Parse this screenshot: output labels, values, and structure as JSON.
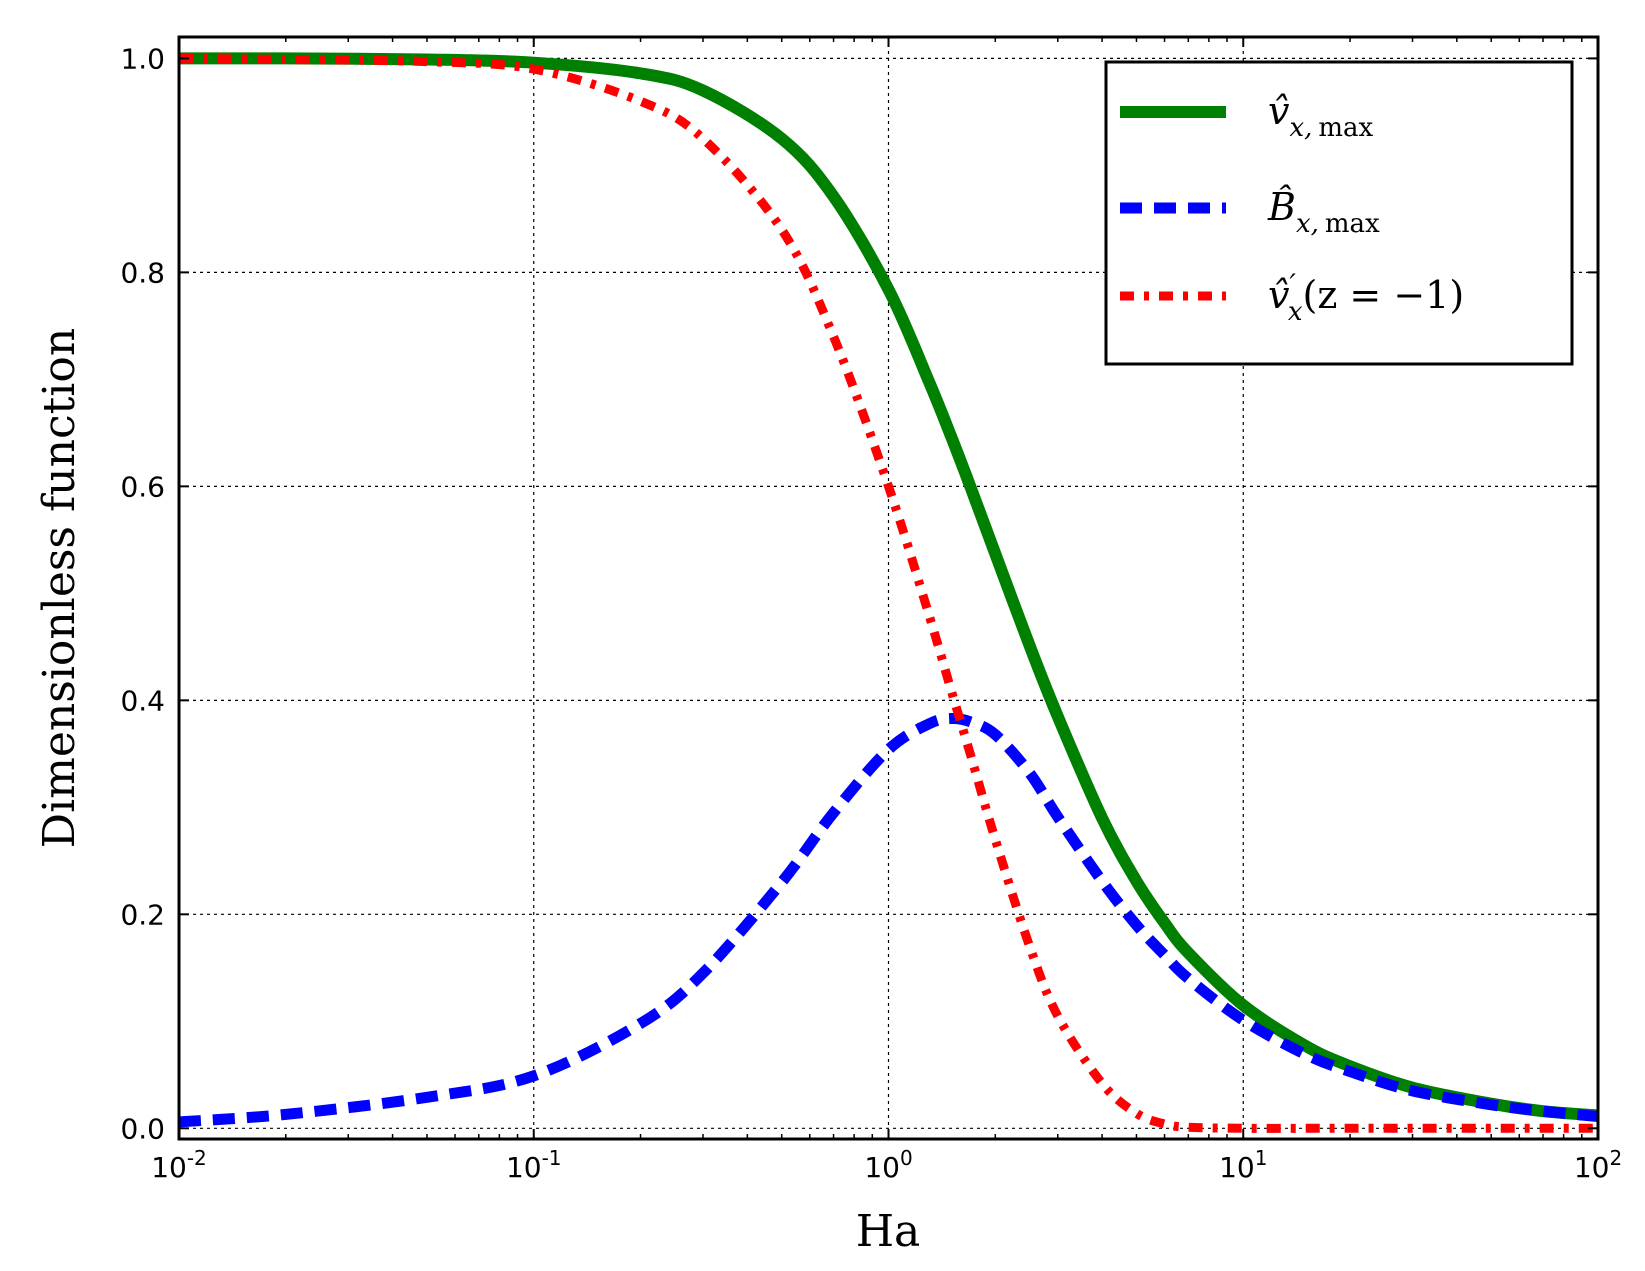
{
  "chart_data": {
    "type": "line",
    "title": "",
    "xlabel": "Ha",
    "ylabel": "Dimensionless function",
    "xscale": "log",
    "xlim": [
      0.01,
      100
    ],
    "ylim": [
      -0.01,
      1.02
    ],
    "grid": true,
    "legend_position": "top-right",
    "x_ticks": [
      {
        "value": 0.01,
        "base": "10",
        "exp": "-2"
      },
      {
        "value": 0.1,
        "base": "10",
        "exp": "-1"
      },
      {
        "value": 1,
        "base": "10",
        "exp": "0"
      },
      {
        "value": 10,
        "base": "10",
        "exp": "1"
      },
      {
        "value": 100,
        "base": "10",
        "exp": "2"
      }
    ],
    "y_ticks": [
      {
        "value": 0.0,
        "label": "0.0"
      },
      {
        "value": 0.2,
        "label": "0.2"
      },
      {
        "value": 0.4,
        "label": "0.4"
      },
      {
        "value": 0.6,
        "label": "0.6"
      },
      {
        "value": 0.8,
        "label": "0.8"
      },
      {
        "value": 1.0,
        "label": "1.0"
      }
    ],
    "x": [
      0.01,
      0.02,
      0.05,
      0.1,
      0.2,
      0.3,
      0.5,
      0.7,
      1.0,
      1.3,
      1.5,
      1.7,
      2.0,
      2.5,
      3.0,
      4.0,
      5.0,
      6.0,
      7.0,
      10.0,
      15.0,
      20.0,
      30.0,
      50.0,
      70.0,
      100.0
    ],
    "series": [
      {
        "name": "v_x_max",
        "legend": {
          "main": "v̂",
          "sub": "x,",
          "sub_rm": "max",
          "prime": "",
          "tail": ""
        },
        "color": "#008000",
        "style": "solid",
        "values": [
          1.0,
          1.0,
          0.999,
          0.996,
          0.986,
          0.97,
          0.925,
          0.871,
          0.784,
          0.698,
          0.647,
          0.6,
          0.537,
          0.451,
          0.385,
          0.29,
          0.231,
          0.192,
          0.164,
          0.115,
          0.077,
          0.058,
          0.038,
          0.023,
          0.016,
          0.012
        ]
      },
      {
        "name": "B_x_max",
        "legend": {
          "main": "B̂",
          "sub": "x,",
          "sub_rm": "max",
          "prime": "",
          "tail": ""
        },
        "color": "#0000ff",
        "style": "dashed",
        "values": [
          0.006,
          0.013,
          0.029,
          0.049,
          0.098,
          0.145,
          0.23,
          0.295,
          0.354,
          0.378,
          0.383,
          0.38,
          0.368,
          0.332,
          0.291,
          0.231,
          0.19,
          0.162,
          0.14,
          0.101,
          0.069,
          0.053,
          0.035,
          0.022,
          0.016,
          0.011
        ]
      },
      {
        "name": "v_x_prime_z_minus_1",
        "legend": {
          "main": "v̂",
          "sub": "x",
          "sub_rm": "",
          "prime": "′",
          "tail": "(z = −1)"
        },
        "color": "#ff0000",
        "style": "dashdot",
        "values": [
          1.0,
          0.999,
          0.997,
          0.99,
          0.96,
          0.925,
          0.84,
          0.74,
          0.6,
          0.48,
          0.41,
          0.35,
          0.27,
          0.17,
          0.105,
          0.042,
          0.014,
          0.004,
          0.001,
          0.0,
          0.0,
          0.0,
          0.0,
          0.0,
          0.0,
          0.0
        ]
      }
    ]
  }
}
